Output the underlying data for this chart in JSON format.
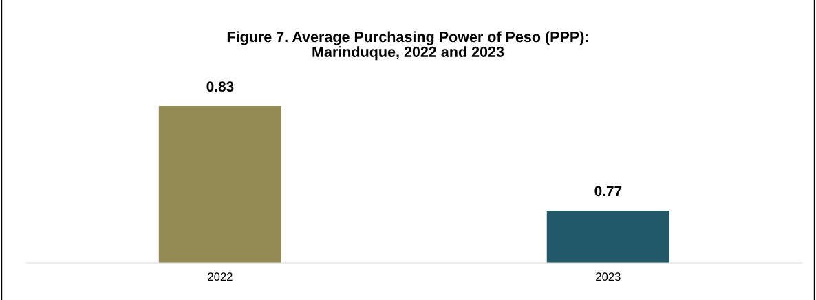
{
  "chart_data": {
    "type": "bar",
    "title": "Figure 7. Average Purchasing Power of Peso (PPP):\nMarinduque, 2022 and 2023",
    "categories": [
      "2022",
      "2023"
    ],
    "values": [
      0.83,
      0.77
    ],
    "colors": [
      "#948a54",
      "#215968"
    ],
    "ylim": [
      0.74,
      0.83
    ],
    "tick_labels": "x",
    "data_labels": true
  }
}
